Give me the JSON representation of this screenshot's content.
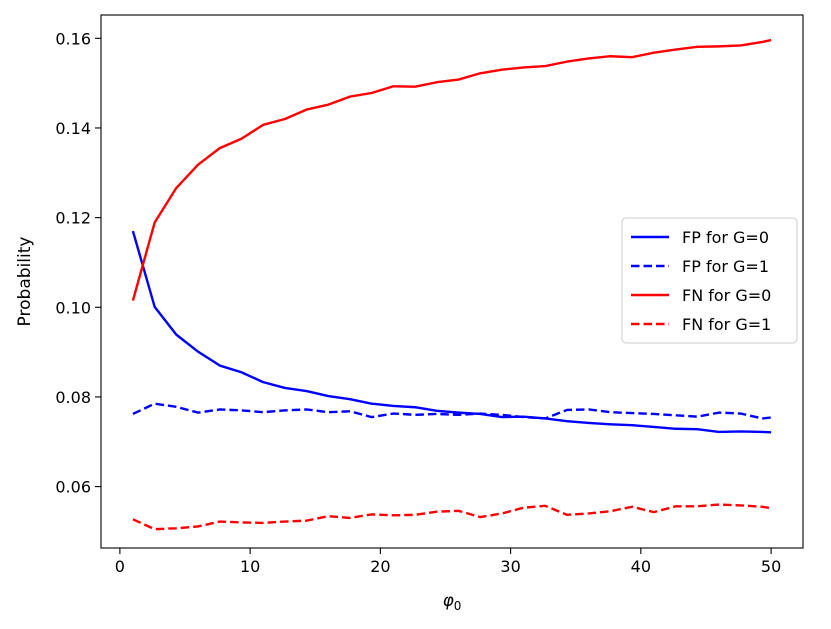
{
  "chart_data": {
    "type": "line",
    "title": "",
    "xlabel": "φ",
    "xlabel_subscript": "0",
    "ylabel": "Probability",
    "xlim": [
      -1.45,
      52.45
    ],
    "ylim": [
      0.0463,
      0.1652
    ],
    "xticks": [
      0,
      10,
      20,
      30,
      40,
      50
    ],
    "xtick_labels": [
      "0",
      "10",
      "20",
      "30",
      "40",
      "50"
    ],
    "yticks": [
      0.06,
      0.08,
      0.1,
      0.12,
      0.14,
      0.16
    ],
    "ytick_labels": [
      "0.06",
      "0.08",
      "0.10",
      "0.12",
      "0.14",
      "0.16"
    ],
    "grid": false,
    "legend_position": "center-right",
    "x": [
      1,
      2.67,
      4.33,
      6,
      7.67,
      9.33,
      11,
      12.67,
      14.33,
      16,
      17.67,
      19.33,
      21,
      22.67,
      24.33,
      26,
      27.67,
      29.33,
      31,
      32.67,
      34.33,
      36,
      37.67,
      39.33,
      41,
      42.67,
      44.33,
      46,
      47.67,
      49.33,
      50
    ],
    "series": [
      {
        "name": "FP for G=0",
        "color": "#0000ff",
        "linestyle": "solid",
        "values": [
          0.117,
          0.1001,
          0.0939,
          0.0901,
          0.087,
          0.0855,
          0.0833,
          0.082,
          0.0813,
          0.0802,
          0.0795,
          0.0785,
          0.078,
          0.0777,
          0.0769,
          0.0765,
          0.0762,
          0.0755,
          0.0756,
          0.0752,
          0.0746,
          0.0742,
          0.0739,
          0.0737,
          0.0733,
          0.0729,
          0.0728,
          0.0722,
          0.0723,
          0.0722,
          0.0721
        ]
      },
      {
        "name": "FP for G=1",
        "color": "#0000ff",
        "linestyle": "dashed",
        "values": [
          0.0762,
          0.0785,
          0.0778,
          0.0765,
          0.0772,
          0.077,
          0.0766,
          0.077,
          0.0772,
          0.0766,
          0.0768,
          0.0755,
          0.0763,
          0.076,
          0.0762,
          0.076,
          0.0763,
          0.076,
          0.0755,
          0.0752,
          0.0771,
          0.0772,
          0.0766,
          0.0764,
          0.0762,
          0.0759,
          0.0756,
          0.0765,
          0.0763,
          0.0752,
          0.0754
        ]
      },
      {
        "name": "FN for G=0",
        "color": "#ff0000",
        "linestyle": "solid",
        "values": [
          0.1015,
          0.1189,
          0.1266,
          0.1318,
          0.1355,
          0.1376,
          0.1407,
          0.142,
          0.1441,
          0.1452,
          0.147,
          0.1478,
          0.1493,
          0.1492,
          0.1502,
          0.1508,
          0.1522,
          0.153,
          0.1535,
          0.1538,
          0.1548,
          0.1555,
          0.156,
          0.1558,
          0.1568,
          0.1575,
          0.1581,
          0.1582,
          0.1584,
          0.1592,
          0.1596
        ]
      },
      {
        "name": "FN for G=1",
        "color": "#ff0000",
        "linestyle": "dashed",
        "values": [
          0.0527,
          0.0505,
          0.0507,
          0.0511,
          0.0522,
          0.052,
          0.0519,
          0.0522,
          0.0524,
          0.0534,
          0.053,
          0.0538,
          0.0536,
          0.0537,
          0.0544,
          0.0546,
          0.0532,
          0.054,
          0.0553,
          0.0557,
          0.0537,
          0.054,
          0.0545,
          0.0555,
          0.0543,
          0.0556,
          0.0556,
          0.056,
          0.0558,
          0.0555,
          0.0552
        ]
      }
    ]
  }
}
